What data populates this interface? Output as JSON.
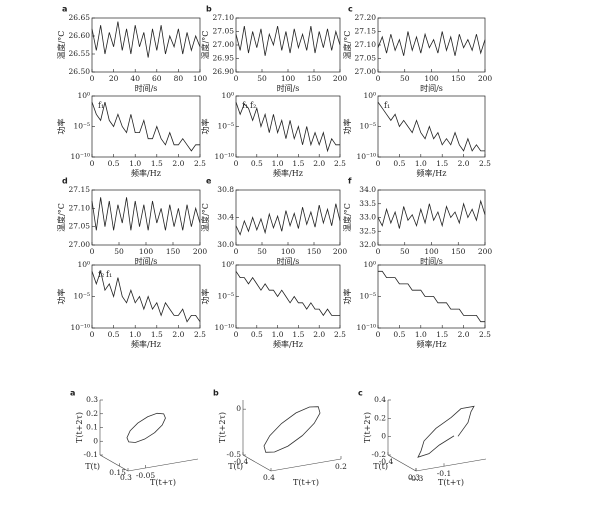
{
  "chart_data": [
    {
      "type": "line",
      "panel": "a",
      "xlabel": "时间/s",
      "ylabel": "温度/°C",
      "color": "#222",
      "x": [
        0,
        4,
        8,
        12,
        16,
        20,
        24,
        28,
        32,
        36,
        40,
        44,
        48,
        52,
        56,
        60,
        64,
        68,
        72,
        76,
        80,
        84,
        88,
        92,
        96,
        100
      ],
      "values": [
        26.62,
        26.56,
        26.63,
        26.55,
        26.61,
        26.57,
        26.64,
        26.56,
        26.62,
        26.55,
        26.63,
        26.57,
        26.61,
        26.54,
        26.62,
        26.56,
        26.63,
        26.55,
        26.6,
        26.57,
        26.62,
        26.55,
        26.61,
        26.56,
        26.6,
        26.57
      ],
      "xlim": [
        0,
        100
      ],
      "xticks": [
        0,
        20,
        40,
        60,
        80,
        100
      ],
      "ylim": [
        26.5,
        26.65
      ],
      "yticks": [
        {
          "value": 26.5,
          "label": "26.50"
        },
        26.55,
        {
          "value": 26.6,
          "label": "26.60"
        },
        26.65
      ]
    },
    {
      "type": "line",
      "panel": "b",
      "xlabel": "时间/s",
      "ylabel": "温度/°C",
      "color": "#222",
      "x": [
        0,
        8,
        16,
        24,
        32,
        40,
        48,
        56,
        64,
        72,
        80,
        88,
        96,
        104,
        112,
        120,
        128,
        136,
        144,
        152,
        160,
        168,
        176,
        184,
        192,
        200
      ],
      "values": [
        27.04,
        26.98,
        27.07,
        26.97,
        27.05,
        26.99,
        27.06,
        26.96,
        27.04,
        27.0,
        27.07,
        26.98,
        27.05,
        26.97,
        27.06,
        26.99,
        27.04,
        26.98,
        27.07,
        26.97,
        27.05,
        26.99,
        27.06,
        26.98,
        27.05,
        27.0
      ],
      "xlim": [
        0,
        200
      ],
      "xticks": [
        0,
        50,
        100,
        150,
        200
      ],
      "ylim": [
        26.9,
        27.1
      ],
      "yticks": [
        {
          "value": 26.9,
          "label": "26.90"
        },
        26.95,
        {
          "value": 27,
          "label": "27.00"
        },
        27.05,
        {
          "value": 27.1,
          "label": "27.10"
        }
      ]
    },
    {
      "type": "line",
      "panel": "c",
      "xlabel": "时间/s",
      "ylabel": "温度/°C",
      "color": "#222",
      "x": [
        0,
        8,
        16,
        24,
        32,
        40,
        48,
        56,
        64,
        72,
        80,
        88,
        96,
        104,
        112,
        120,
        128,
        136,
        144,
        152,
        160,
        168,
        176,
        184,
        192,
        200
      ],
      "values": [
        27.09,
        27.13,
        27.07,
        27.14,
        27.08,
        27.12,
        27.06,
        27.15,
        27.08,
        27.13,
        27.07,
        27.14,
        27.09,
        27.12,
        27.07,
        27.15,
        27.08,
        27.13,
        27.06,
        27.14,
        27.09,
        27.12,
        27.08,
        27.14,
        27.07,
        27.12
      ],
      "xlim": [
        0,
        200
      ],
      "xticks": [
        0,
        50,
        100,
        150,
        200
      ],
      "ylim": [
        27,
        27.2
      ],
      "yticks": [
        {
          "value": 27,
          "label": "27.00"
        },
        27.05,
        {
          "value": 27.1,
          "label": "27.10"
        },
        27.15,
        {
          "value": 27.2,
          "label": "27.20"
        }
      ]
    },
    {
      "type": "line",
      "panel": "d",
      "xlabel": "时间/s",
      "ylabel": "温度/°C",
      "color": "#222",
      "x": [
        0,
        8,
        16,
        24,
        32,
        40,
        48,
        56,
        64,
        72,
        80,
        88,
        96,
        104,
        112,
        120,
        128,
        136,
        144,
        152,
        160,
        168,
        176,
        184,
        192,
        200
      ],
      "values": [
        27.12,
        27.04,
        27.13,
        27.05,
        27.12,
        27.04,
        27.11,
        27.06,
        27.13,
        27.04,
        27.12,
        27.05,
        27.11,
        27.04,
        27.12,
        27.06,
        27.1,
        27.04,
        27.11,
        27.05,
        27.1,
        27.04,
        27.11,
        27.05,
        27.1,
        27.06
      ],
      "xlim": [
        0,
        200
      ],
      "xticks": [
        0,
        50,
        100,
        150,
        200
      ],
      "ylim": [
        27,
        27.15
      ],
      "yticks": [
        {
          "value": 27,
          "label": "27.00"
        },
        27.05,
        {
          "value": 27.1,
          "label": "27.10"
        },
        27.15
      ]
    },
    {
      "type": "line",
      "panel": "e",
      "xlabel": "时间/s",
      "ylabel": "温度/°C",
      "color": "#222",
      "x": [
        0,
        8,
        16,
        24,
        32,
        40,
        48,
        56,
        64,
        72,
        80,
        88,
        96,
        104,
        112,
        120,
        128,
        136,
        144,
        152,
        160,
        168,
        176,
        184,
        192,
        200
      ],
      "values": [
        30.28,
        30.15,
        30.35,
        30.2,
        30.4,
        30.22,
        30.38,
        30.18,
        30.45,
        30.25,
        30.42,
        30.2,
        30.5,
        30.28,
        30.46,
        30.24,
        30.55,
        30.3,
        30.48,
        30.26,
        30.58,
        30.32,
        30.52,
        30.28,
        30.6,
        30.35
      ],
      "xlim": [
        0,
        200
      ],
      "xticks": [
        0,
        50,
        100,
        150,
        200
      ],
      "ylim": [
        30,
        30.8
      ],
      "yticks": [
        {
          "value": 30,
          "label": "30.0"
        },
        30.4,
        30.8
      ]
    },
    {
      "type": "line",
      "panel": "f",
      "xlabel": "时间/s",
      "ylabel": "温度/°C",
      "color": "#222",
      "x": [
        0,
        8,
        16,
        24,
        32,
        40,
        48,
        56,
        64,
        72,
        80,
        88,
        96,
        104,
        112,
        120,
        128,
        136,
        144,
        152,
        160,
        168,
        176,
        184,
        192,
        200
      ],
      "values": [
        33.0,
        32.7,
        33.3,
        32.8,
        33.2,
        32.6,
        33.4,
        32.9,
        33.1,
        32.7,
        33.3,
        32.8,
        33.5,
        32.9,
        33.2,
        32.7,
        33.4,
        33.0,
        33.2,
        32.8,
        33.5,
        33.0,
        33.3,
        32.9,
        33.6,
        33.1
      ],
      "xlim": [
        0,
        200
      ],
      "xticks": [
        0,
        50,
        100,
        150,
        200
      ],
      "ylim": [
        32,
        34
      ],
      "yticks": [
        {
          "value": 32,
          "label": "32.0"
        },
        32.5,
        {
          "value": 33,
          "label": "33.0"
        },
        33.5,
        {
          "value": 34,
          "label": "34.0"
        }
      ]
    },
    {
      "type": "line",
      "log_y": true,
      "xlabel": "频率/Hz",
      "ylabel": "功率",
      "color": "#222",
      "annotations": [
        "f₁"
      ],
      "x": [
        0,
        0.1,
        0.2,
        0.3,
        0.4,
        0.5,
        0.6,
        0.7,
        0.8,
        0.9,
        1,
        1.1,
        1.2,
        1.3,
        1.4,
        1.5,
        1.6,
        1.7,
        1.8,
        1.9,
        2,
        2.1,
        2.2,
        2.3,
        2.4,
        2.5
      ],
      "values": [
        0.1,
        0.001,
        0.0001,
        0.1,
        0.0001,
        1e-05,
        0.001,
        1e-05,
        1e-06,
        0.001,
        1e-06,
        1e-06,
        0.0001,
        1e-07,
        1e-07,
        1e-05,
        1e-07,
        1e-08,
        1e-06,
        1e-08,
        1e-08,
        1e-07,
        1e-08,
        1e-09,
        1e-08,
        1e-08
      ],
      "xlim": [
        0,
        2.5
      ],
      "xticks": [
        0,
        0.5,
        {
          "value": 1,
          "label": "1.0"
        },
        1.5,
        {
          "value": 2,
          "label": "2.0"
        },
        2.5
      ],
      "ylim": [
        1e-10,
        1
      ],
      "yticks": [
        {
          "value": 1e-10,
          "label": "10⁻¹⁰"
        },
        {
          "value": 1e-05,
          "label": "10⁻⁵"
        },
        {
          "value": 1,
          "label": "10⁰"
        }
      ]
    },
    {
      "type": "line",
      "log_y": true,
      "xlabel": "频率/Hz",
      "ylabel": "功率",
      "color": "#222",
      "annotations": [
        "f₁",
        "f₂"
      ],
      "x": [
        0,
        0.1,
        0.2,
        0.3,
        0.4,
        0.5,
        0.6,
        0.7,
        0.8,
        0.9,
        1,
        1.1,
        1.2,
        1.3,
        1.4,
        1.5,
        1.6,
        1.7,
        1.8,
        1.9,
        2,
        2.1,
        2.2,
        2.3,
        2.4,
        2.5
      ],
      "values": [
        0.1,
        0.001,
        0.05,
        0.01,
        0.0001,
        0.01,
        1e-05,
        0.001,
        1e-06,
        0.001,
        1e-06,
        0.0001,
        1e-07,
        0.0001,
        1e-07,
        1e-05,
        1e-08,
        1e-05,
        1e-08,
        1e-06,
        1e-08,
        1e-06,
        1e-09,
        1e-07,
        1e-08,
        1e-08
      ],
      "xlim": [
        0,
        2.5
      ],
      "xticks": [
        0,
        0.5,
        {
          "value": 1,
          "label": "1.0"
        },
        1.5,
        {
          "value": 2,
          "label": "2.0"
        },
        2.5
      ],
      "ylim": [
        1e-10,
        1
      ],
      "yticks": [
        {
          "value": 1e-10,
          "label": "10⁻¹⁰"
        },
        {
          "value": 1e-05,
          "label": "10⁻⁵"
        },
        {
          "value": 1,
          "label": "10⁰"
        }
      ]
    },
    {
      "type": "line",
      "log_y": true,
      "xlabel": "频率/Hz",
      "ylabel": "功率",
      "color": "#222",
      "annotations": [
        "f₁"
      ],
      "x": [
        0,
        0.1,
        0.2,
        0.3,
        0.4,
        0.5,
        0.6,
        0.7,
        0.8,
        0.9,
        1,
        1.1,
        1.2,
        1.3,
        1.4,
        1.5,
        1.6,
        1.7,
        1.8,
        1.9,
        2,
        2.1,
        2.2,
        2.3,
        2.4,
        2.5
      ],
      "values": [
        0.1,
        0.01,
        0.001,
        0.0001,
        0.001,
        1e-05,
        0.0001,
        1e-05,
        1e-06,
        0.0001,
        1e-06,
        1e-07,
        1e-05,
        1e-07,
        1e-06,
        1e-08,
        1e-07,
        1e-08,
        1e-06,
        1e-08,
        1e-09,
        1e-07,
        1e-09,
        1e-08,
        1e-09,
        1e-09
      ],
      "xlim": [
        0,
        2.5
      ],
      "xticks": [
        0,
        0.5,
        {
          "value": 1,
          "label": "1.0"
        },
        1.5,
        {
          "value": 2,
          "label": "2.0"
        },
        2.5
      ],
      "ylim": [
        1e-10,
        1
      ],
      "yticks": [
        {
          "value": 1e-10,
          "label": "10⁻¹⁰"
        },
        {
          "value": 1e-05,
          "label": "10⁻⁵"
        },
        {
          "value": 1,
          "label": "10⁰"
        }
      ]
    },
    {
      "type": "line",
      "log_y": true,
      "xlabel": "频率/Hz",
      "ylabel": "功率",
      "color": "#222",
      "annotations": [
        "f₂",
        "f₁"
      ],
      "x": [
        0,
        0.1,
        0.2,
        0.3,
        0.4,
        0.5,
        0.6,
        0.7,
        0.8,
        0.9,
        1,
        1.1,
        1.2,
        1.3,
        1.4,
        1.5,
        1.6,
        1.7,
        1.8,
        1.9,
        2,
        2.1,
        2.2,
        2.3,
        2.4,
        2.5
      ],
      "values": [
        0.1,
        0.001,
        0.1,
        0.0001,
        0.001,
        1e-05,
        0.01,
        1e-05,
        1e-06,
        0.0001,
        1e-06,
        1e-05,
        1e-07,
        1e-05,
        1e-07,
        1e-06,
        1e-08,
        1e-06,
        1e-07,
        1e-08,
        1e-08,
        1e-07,
        1e-09,
        1e-08,
        1e-08,
        1e-09
      ],
      "xlim": [
        0,
        2.5
      ],
      "xticks": [
        0,
        0.5,
        {
          "value": 1,
          "label": "1.0"
        },
        1.5,
        {
          "value": 2,
          "label": "2.0"
        },
        2.5
      ],
      "ylim": [
        1e-10,
        1
      ],
      "yticks": [
        {
          "value": 1e-10,
          "label": "10⁻¹⁰"
        },
        {
          "value": 1e-05,
          "label": "10⁻⁵"
        },
        {
          "value": 1,
          "label": "10⁰"
        }
      ]
    },
    {
      "type": "line",
      "log_y": true,
      "xlabel": "频率/Hz",
      "ylabel": "功率",
      "color": "#222",
      "x": [
        0,
        0.1,
        0.2,
        0.3,
        0.4,
        0.5,
        0.6,
        0.7,
        0.8,
        0.9,
        1,
        1.1,
        1.2,
        1.3,
        1.4,
        1.5,
        1.6,
        1.7,
        1.8,
        1.9,
        2,
        2.1,
        2.2,
        2.3,
        2.4,
        2.5
      ],
      "values": [
        0.1,
        0.01,
        0.01,
        0.001,
        0.01,
        0.001,
        0.0001,
        0.001,
        0.0001,
        0.0001,
        1e-05,
        0.0001,
        1e-05,
        1e-06,
        1e-05,
        1e-06,
        1e-06,
        1e-07,
        1e-06,
        1e-07,
        1e-07,
        1e-08,
        1e-07,
        1e-08,
        1e-08,
        1e-08
      ],
      "xlim": [
        0,
        2.5
      ],
      "xticks": [
        0,
        0.5,
        {
          "value": 1,
          "label": "1.0"
        },
        1.5,
        {
          "value": 2,
          "label": "2.0"
        },
        2.5
      ],
      "ylim": [
        1e-10,
        1
      ],
      "yticks": [
        {
          "value": 1e-10,
          "label": "10⁻¹⁰"
        },
        {
          "value": 1e-05,
          "label": "10⁻⁵"
        },
        {
          "value": 1,
          "label": "10⁰"
        }
      ]
    },
    {
      "type": "line",
      "log_y": true,
      "xlabel": "频率/Hz",
      "ylabel": "功率",
      "color": "#222",
      "x": [
        0,
        0.1,
        0.2,
        0.3,
        0.4,
        0.5,
        0.6,
        0.7,
        0.8,
        0.9,
        1,
        1.1,
        1.2,
        1.3,
        1.4,
        1.5,
        1.6,
        1.7,
        1.8,
        1.9,
        2,
        2.1,
        2.2,
        2.3,
        2.4,
        2.5
      ],
      "values": [
        0.1,
        0.1,
        0.01,
        0.01,
        0.01,
        0.001,
        0.001,
        0.001,
        0.0001,
        0.0001,
        0.0001,
        1e-05,
        1e-05,
        1e-05,
        1e-06,
        1e-06,
        1e-06,
        1e-07,
        1e-07,
        1e-07,
        1e-08,
        1e-08,
        1e-08,
        1e-08,
        1e-09,
        1e-09
      ],
      "xlim": [
        0,
        2.5
      ],
      "xticks": [
        0,
        0.5,
        {
          "value": 1,
          "label": "1.0"
        },
        1.5,
        {
          "value": 2,
          "label": "2.0"
        },
        2.5
      ],
      "ylim": [
        1e-10,
        1
      ],
      "yticks": [
        {
          "value": 1e-10,
          "label": "10⁻¹⁰"
        },
        {
          "value": 1e-05,
          "label": "10⁻⁵"
        },
        {
          "value": 1,
          "label": "10⁰"
        }
      ]
    },
    {
      "type": "line3d",
      "panel": "a",
      "xlabel": "T(t)",
      "ylabel": "T(t+τ)",
      "zlabel": "T(t+2τ)",
      "color": "#333",
      "x": [
        0.15,
        0.13,
        0.075,
        0,
        -0.075,
        -0.13,
        -0.15,
        -0.13,
        -0.075,
        0,
        0.075,
        0.13,
        0.15
      ],
      "y": [
        0,
        0.025,
        0.043,
        0.05,
        0.043,
        0.025,
        0,
        -0.025,
        -0.043,
        -0.05,
        -0.043,
        -0.025,
        0
      ],
      "z": [
        0.1,
        0.14,
        0.17,
        0.18,
        0.17,
        0.14,
        0.1,
        0.06,
        0.03,
        0.02,
        0.03,
        0.06,
        0.1
      ],
      "xlim": [
        -0.2,
        0.3
      ],
      "xticks": [
        0.15,
        0.3
      ],
      "ylim": [
        -0.1,
        0.1
      ],
      "yticks": [
        -0.05
      ],
      "zlim": [
        -0.1,
        0.3
      ],
      "zticks": [
        -0.1,
        0,
        0.1,
        0.2,
        0.3
      ]
    },
    {
      "type": "line3d",
      "panel": "b",
      "xlabel": "T(t)",
      "ylabel": "T(t+τ)",
      "zlabel": "T(t+2τ)",
      "color": "#333",
      "x": [
        0.3,
        0.26,
        0.15,
        0,
        -0.15,
        -0.26,
        -0.3,
        -0.26,
        -0.15,
        0,
        0.15,
        0.26,
        0.3
      ],
      "y": [
        0,
        0.075,
        0.13,
        0.15,
        0.13,
        0.075,
        0,
        -0.075,
        -0.13,
        -0.15,
        -0.13,
        -0.075,
        0
      ],
      "z": [
        -0.2,
        -0.1,
        -0.03,
        0,
        -0.03,
        -0.1,
        -0.2,
        -0.3,
        -0.37,
        -0.4,
        -0.37,
        -0.3,
        -0.2
      ],
      "xlim": [
        -0.4,
        0.4
      ],
      "xticks": [
        -0.4,
        0.4
      ],
      "ylim": [
        -0.2,
        0.2
      ],
      "yticks": [
        0.2
      ],
      "zlim": [
        -0.5,
        0.1
      ],
      "zticks": [
        -0.5,
        0
      ]
    },
    {
      "type": "line3d",
      "panel": "c",
      "xlabel": "T(t)",
      "ylabel": "T(t+τ)",
      "zlabel": "T(t+2τ)",
      "color": "#333",
      "x": [
        0.3,
        0.2,
        0.1,
        0,
        -0.15,
        -0.22,
        -0.25,
        -0.2,
        -0.1,
        0,
        0.1,
        0.18,
        0.2
      ],
      "y": [
        0,
        0.1,
        0.15,
        0.2,
        0.15,
        0.1,
        0,
        -0.1,
        -0.15,
        -0.2,
        -0.15,
        -0.1,
        0
      ],
      "z": [
        0.1,
        0.2,
        0.28,
        0.3,
        0.25,
        0.15,
        0.05,
        -0.05,
        -0.12,
        -0.15,
        -0.1,
        0,
        0.08
      ],
      "xlim": [
        -0.4,
        0.3
      ],
      "xticks": [
        -0.4,
        0.3
      ],
      "ylim": [
        -0.3,
        0.2
      ],
      "yticks": [
        -0.3,
        -0.1
      ],
      "zlim": [
        -0.2,
        0.4
      ],
      "zticks": [
        -0.2,
        0,
        0.2,
        0.4
      ]
    }
  ]
}
